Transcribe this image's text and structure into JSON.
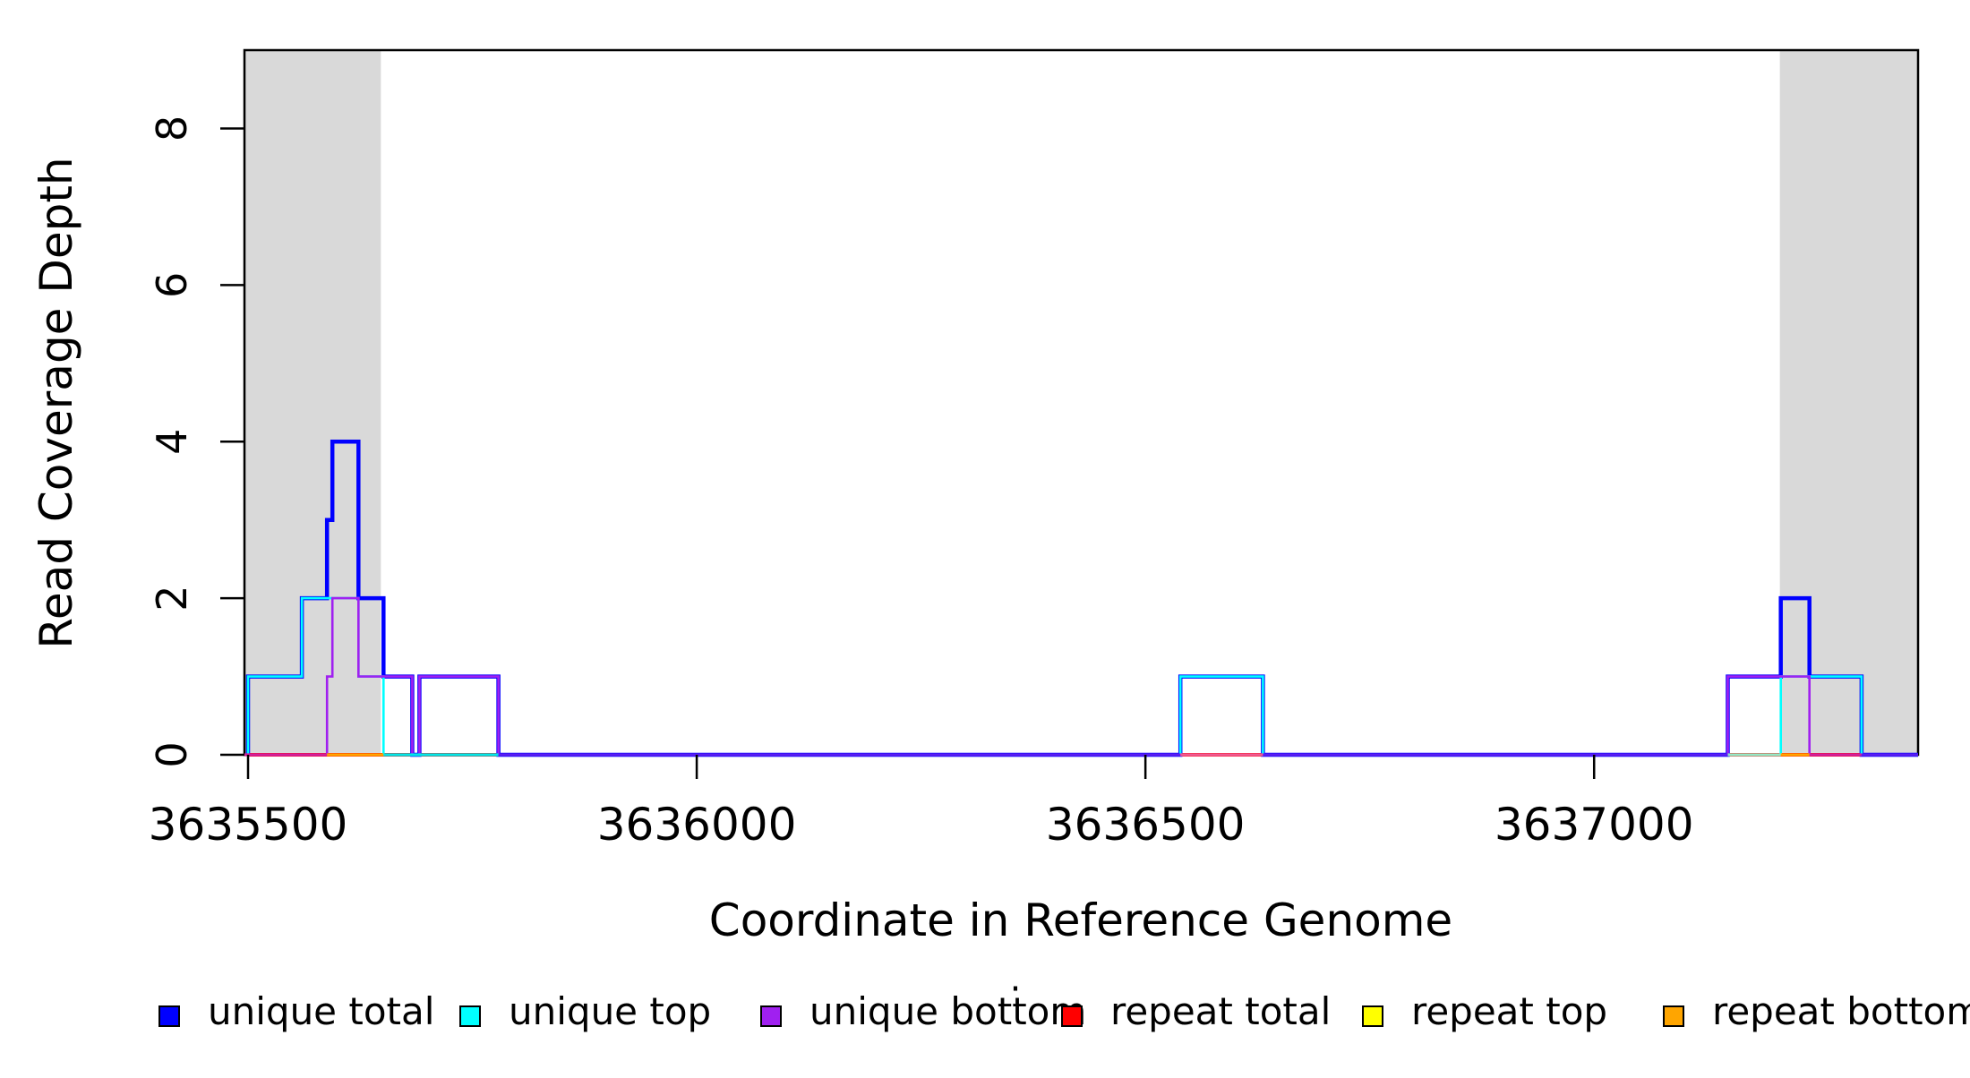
{
  "chart_data": {
    "type": "line",
    "subtype": "step-coverage",
    "title": "",
    "xlabel": "Coordinate in Reference Genome",
    "ylabel": "Read Coverage Depth",
    "xlim": [
      3635496,
      3637361
    ],
    "ylim": [
      0,
      9
    ],
    "grid": false,
    "legend_position": "bottom",
    "x_ticks": [
      {
        "value": 3635500,
        "label": "3635500"
      },
      {
        "value": 3636000,
        "label": "3636000"
      },
      {
        "value": 3636500,
        "label": "3636500"
      },
      {
        "value": 3637000,
        "label": "3637000"
      }
    ],
    "y_ticks": [
      {
        "value": 0,
        "label": "0"
      },
      {
        "value": 2,
        "label": "2"
      },
      {
        "value": 4,
        "label": "4"
      },
      {
        "value": 6,
        "label": "6"
      },
      {
        "value": 8,
        "label": "8"
      }
    ],
    "shaded_regions": [
      {
        "from": 3635496,
        "to": 3635648,
        "color": "#d9d9d9"
      },
      {
        "from": 3637207,
        "to": 3637361,
        "color": "#d9d9d9"
      }
    ],
    "series": [
      {
        "name": "unique total",
        "color": "#0000ff",
        "points": [
          [
            3635500,
            0
          ],
          [
            3635500,
            1
          ],
          [
            3635560,
            1
          ],
          [
            3635560,
            2
          ],
          [
            3635588,
            2
          ],
          [
            3635588,
            3
          ],
          [
            3635594,
            3
          ],
          [
            3635594,
            4
          ],
          [
            3635623,
            4
          ],
          [
            3635623,
            2
          ],
          [
            3635651,
            2
          ],
          [
            3635651,
            1
          ],
          [
            3635683,
            1
          ],
          [
            3635683,
            0
          ],
          [
            3635691,
            0
          ],
          [
            3635691,
            1
          ],
          [
            3635779,
            1
          ],
          [
            3635779,
            0
          ],
          [
            3636539,
            0
          ],
          [
            3636539,
            1
          ],
          [
            3636631,
            1
          ],
          [
            3636631,
            0
          ],
          [
            3637149,
            0
          ],
          [
            3637149,
            1
          ],
          [
            3637208,
            1
          ],
          [
            3637208,
            2
          ],
          [
            3637240,
            2
          ],
          [
            3637240,
            1
          ],
          [
            3637298,
            1
          ],
          [
            3637298,
            0
          ],
          [
            3637361,
            0
          ]
        ]
      },
      {
        "name": "unique top",
        "color": "#00ffff",
        "points": [
          [
            3635500,
            0
          ],
          [
            3635500,
            1
          ],
          [
            3635560,
            1
          ],
          [
            3635560,
            2
          ],
          [
            3635623,
            2
          ],
          [
            3635623,
            1
          ],
          [
            3635651,
            1
          ],
          [
            3635651,
            0
          ],
          [
            3636539,
            0
          ],
          [
            3636539,
            1
          ],
          [
            3636631,
            1
          ],
          [
            3636631,
            0
          ],
          [
            3637208,
            0
          ],
          [
            3637208,
            1
          ],
          [
            3637298,
            1
          ],
          [
            3637298,
            0
          ],
          [
            3637361,
            0
          ]
        ]
      },
      {
        "name": "unique bottom",
        "color": "#a020f0",
        "points": [
          [
            3635500,
            0
          ],
          [
            3635588,
            0
          ],
          [
            3635588,
            1
          ],
          [
            3635594,
            1
          ],
          [
            3635594,
            2
          ],
          [
            3635623,
            2
          ],
          [
            3635623,
            1
          ],
          [
            3635683,
            1
          ],
          [
            3635683,
            0
          ],
          [
            3635691,
            0
          ],
          [
            3635691,
            1
          ],
          [
            3635779,
            1
          ],
          [
            3635779,
            0
          ],
          [
            3637149,
            0
          ],
          [
            3637149,
            1
          ],
          [
            3637240,
            1
          ],
          [
            3637240,
            0
          ],
          [
            3637361,
            0
          ]
        ]
      },
      {
        "name": "repeat total",
        "color": "#ff0000",
        "points": [
          [
            3635500,
            0
          ],
          [
            3637361,
            0
          ]
        ]
      },
      {
        "name": "repeat top",
        "color": "#ffff00",
        "points": [
          [
            3635500,
            0
          ],
          [
            3637361,
            0
          ]
        ]
      },
      {
        "name": "repeat bottom",
        "color": "#ffa500",
        "points": [
          [
            3635500,
            0
          ],
          [
            3637361,
            0
          ]
        ]
      }
    ],
    "baseline_blend_segments": [
      {
        "from": 3635496,
        "to": 3635588,
        "color": "#d0219c"
      },
      {
        "from": 3635588,
        "to": 3635651,
        "color": "#ffa500"
      },
      {
        "from": 3635651,
        "to": 3635779,
        "color": "#00e8e8"
      },
      {
        "from": 3635779,
        "to": 3636539,
        "color": "#5a1ef0"
      },
      {
        "from": 3636539,
        "to": 3636631,
        "color": "#ee5b93"
      },
      {
        "from": 3636631,
        "to": 3637149,
        "color": "#5a1ef0"
      },
      {
        "from": 3637149,
        "to": 3637208,
        "color": "#93e9c6"
      },
      {
        "from": 3637208,
        "to": 3637240,
        "color": "#ffa500"
      },
      {
        "from": 3637240,
        "to": 3637298,
        "color": "#d0219c"
      },
      {
        "from": 3637298,
        "to": 3637361,
        "color": "#5a1ef0"
      }
    ]
  },
  "legend": {
    "items": [
      {
        "label": "unique total",
        "color": "#0000ff"
      },
      {
        "label": "unique top",
        "color": "#00ffff"
      },
      {
        "label": "unique bottom",
        "color": "#a020f0"
      },
      {
        "label": "repeat total",
        "color": "#ff0000"
      },
      {
        "label": "repeat top",
        "color": "#ffff00"
      },
      {
        "label": "repeat bottom",
        "color": "#ffa500"
      }
    ],
    "stray_mark": "·"
  }
}
